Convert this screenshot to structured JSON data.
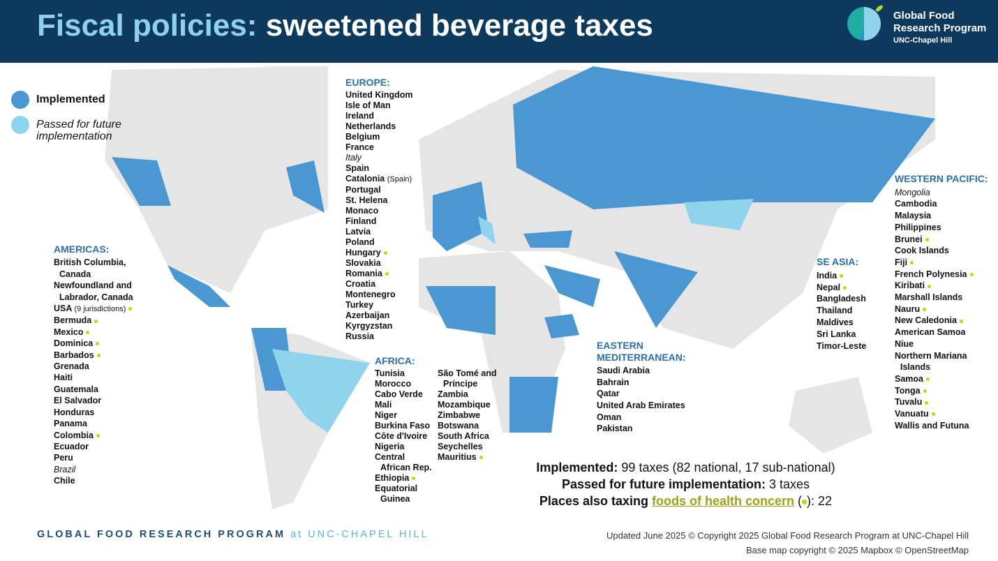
{
  "header": {
    "title_prefix": "Fiscal policies:",
    "title_rest": "sweetened beverage taxes",
    "logo": {
      "line1": "Global Food",
      "line2": "Research Program",
      "line3": "UNC-Chapel Hill"
    }
  },
  "legend": {
    "items": [
      {
        "label": "Implemented",
        "color": "#4a97d2",
        "italic": false
      },
      {
        "label": "Passed for future implementation",
        "color": "#8fd3ec",
        "italic": true
      }
    ]
  },
  "regions": {
    "europe": {
      "title": "EUROPE:",
      "items": [
        {
          "name": "United Kingdom"
        },
        {
          "name": "Isle of Man"
        },
        {
          "name": "Ireland"
        },
        {
          "name": "Netherlands"
        },
        {
          "name": "Belgium"
        },
        {
          "name": "France"
        },
        {
          "name": "Italy",
          "italic": true
        },
        {
          "name": "Spain"
        },
        {
          "name": "Catalonia",
          "note": "(Spain)"
        },
        {
          "name": "Portugal"
        },
        {
          "name": "St. Helena"
        },
        {
          "name": "Monaco"
        },
        {
          "name": "Finland"
        },
        {
          "name": "Latvia"
        },
        {
          "name": "Poland"
        },
        {
          "name": "Hungary",
          "dot": true
        },
        {
          "name": "Slovakia"
        },
        {
          "name": "Romania",
          "dot": true
        },
        {
          "name": "Croatia"
        },
        {
          "name": "Montenegro"
        },
        {
          "name": "Turkey"
        },
        {
          "name": "Azerbaijan"
        },
        {
          "name": "Kyrgyzstan"
        },
        {
          "name": "Russia"
        }
      ]
    },
    "americas": {
      "title": "AMERICAS:",
      "items": [
        {
          "name": "British Columbia, Canada"
        },
        {
          "name": "Newfoundland and Labrador, Canada"
        },
        {
          "name": "USA",
          "note": "(9 jurisdictions)",
          "dot": true
        },
        {
          "name": "Bermuda",
          "dot": true
        },
        {
          "name": "Mexico",
          "dot": true
        },
        {
          "name": "Dominica",
          "dot": true
        },
        {
          "name": "Barbados",
          "dot": true
        },
        {
          "name": "Grenada"
        },
        {
          "name": "Haiti"
        },
        {
          "name": "Guatemala"
        },
        {
          "name": "El Salvador"
        },
        {
          "name": "Honduras"
        },
        {
          "name": "Panama"
        },
        {
          "name": "Colombia",
          "dot": true
        },
        {
          "name": "Ecuador"
        },
        {
          "name": "Peru"
        },
        {
          "name": "Brazil",
          "italic": true
        },
        {
          "name": "Chile"
        }
      ]
    },
    "africa": {
      "title": "AFRICA:",
      "items": [
        {
          "name": "Tunisia"
        },
        {
          "name": "Morocco"
        },
        {
          "name": "Cabo Verde"
        },
        {
          "name": "Mali"
        },
        {
          "name": "Niger"
        },
        {
          "name": "Burkina Faso"
        },
        {
          "name": "Côte d'Ivoire"
        },
        {
          "name": "Nigeria"
        },
        {
          "name": "Central African Rep."
        },
        {
          "name": "Ethiopia",
          "dot": true
        },
        {
          "name": "Equatorial Guinea"
        },
        {
          "name": "São Tomé and Príncipe"
        },
        {
          "name": "Zambia"
        },
        {
          "name": "Mozambique"
        },
        {
          "name": "Zimbabwe"
        },
        {
          "name": "Botswana"
        },
        {
          "name": "South Africa"
        },
        {
          "name": "Seychelles"
        },
        {
          "name": "Mauritius",
          "dot": true
        }
      ]
    },
    "eastern_mediterranean": {
      "title": "EASTERN MEDITERRANEAN:",
      "items": [
        {
          "name": "Saudi Arabia"
        },
        {
          "name": "Bahrain"
        },
        {
          "name": "Qatar"
        },
        {
          "name": "United Arab Emirates"
        },
        {
          "name": "Oman"
        },
        {
          "name": "Pakistan"
        }
      ]
    },
    "se_asia": {
      "title": "SE ASIA:",
      "items": [
        {
          "name": "India",
          "dot": true
        },
        {
          "name": "Nepal",
          "dot": true
        },
        {
          "name": "Bangladesh"
        },
        {
          "name": "Thailand"
        },
        {
          "name": "Maldives"
        },
        {
          "name": "Sri Lanka"
        },
        {
          "name": "Timor-Leste"
        }
      ]
    },
    "western_pacific": {
      "title": "WESTERN PACIFIC:",
      "items": [
        {
          "name": "Mongolia",
          "italic": true
        },
        {
          "name": "Cambodia"
        },
        {
          "name": "Malaysia"
        },
        {
          "name": "Philippines"
        },
        {
          "name": "Brunei",
          "dot": true
        },
        {
          "name": "Cook Islands"
        },
        {
          "name": "Fiji",
          "dot": true
        },
        {
          "name": "French Polynesia",
          "dot": true
        },
        {
          "name": "Kiribati",
          "dot": true
        },
        {
          "name": "Marshall Islands"
        },
        {
          "name": "Nauru",
          "dot": true
        },
        {
          "name": "New Caledonia",
          "dot": true
        },
        {
          "name": "American Samoa"
        },
        {
          "name": "Niue"
        },
        {
          "name": "Northern Mariana Islands"
        },
        {
          "name": "Samoa",
          "dot": true
        },
        {
          "name": "Tonga",
          "dot": true
        },
        {
          "name": "Tuvalu",
          "dot": true
        },
        {
          "name": "Vanuatu",
          "dot": true
        },
        {
          "name": "Wallis and Futuna"
        }
      ]
    }
  },
  "summary": {
    "implemented_label": "Implemented:",
    "implemented_value": "99 taxes (82 national, 17 sub-national)",
    "passed_label": "Passed for future implementation:",
    "passed_value": "3 taxes",
    "foods_prefix": "Places also taxing",
    "foods_link": "foods of health concern",
    "foods_value": "): 22"
  },
  "footer": {
    "org": "GLOBAL FOOD RESEARCH PROGRAM",
    "org_at": "at UNC-CHAPEL HILL",
    "updated": "Updated June 2025  © Copyright 2025 Global Food Research Program at UNC-Chapel Hill",
    "basemap": "Base map copyright © 2025 Mapbox © OpenStreetMap"
  }
}
